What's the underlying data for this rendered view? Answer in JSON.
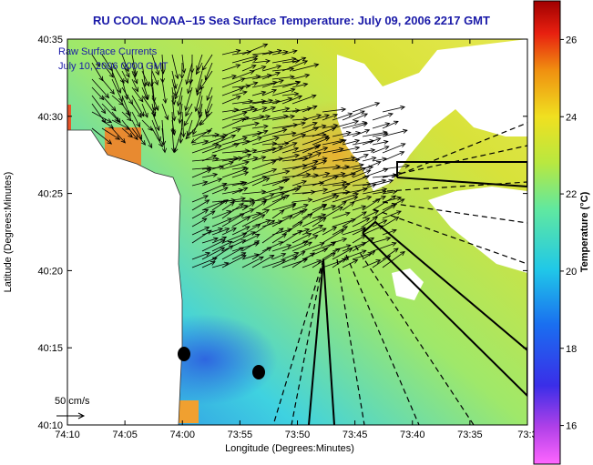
{
  "chart_data": {
    "type": "heatmap",
    "title": "RU COOL  NOAA–15  Sea Surface Temperature:  July 09, 2006 2217 GMT",
    "xlabel": "Longitude (Degrees:Minutes)",
    "ylabel": "Latitude (Degrees:Minutes)",
    "colorbar_label": "Temperature (°C)",
    "x_ticks": [
      "74:10",
      "74:05",
      "74:00",
      "73:55",
      "73:50",
      "73:45",
      "73:40",
      "73:35",
      "73:3"
    ],
    "y_ticks": [
      "40:35",
      "40:30",
      "40:25",
      "40:20",
      "40:15",
      "40:10"
    ],
    "colorbar_ticks": [
      "26",
      "24",
      "22",
      "20",
      "18",
      "16"
    ],
    "colorbar_range": [
      15,
      27
    ],
    "annotation": [
      "Raw Surface Currents",
      "July 10, 2006 0000 GMT"
    ],
    "vector_scale_label": "50 cm/s",
    "grid": false,
    "colors": {
      "title": "#1a1aa8",
      "annotation": "#1a1aa8",
      "land": "#ffffff",
      "arrows": "#000000"
    }
  }
}
